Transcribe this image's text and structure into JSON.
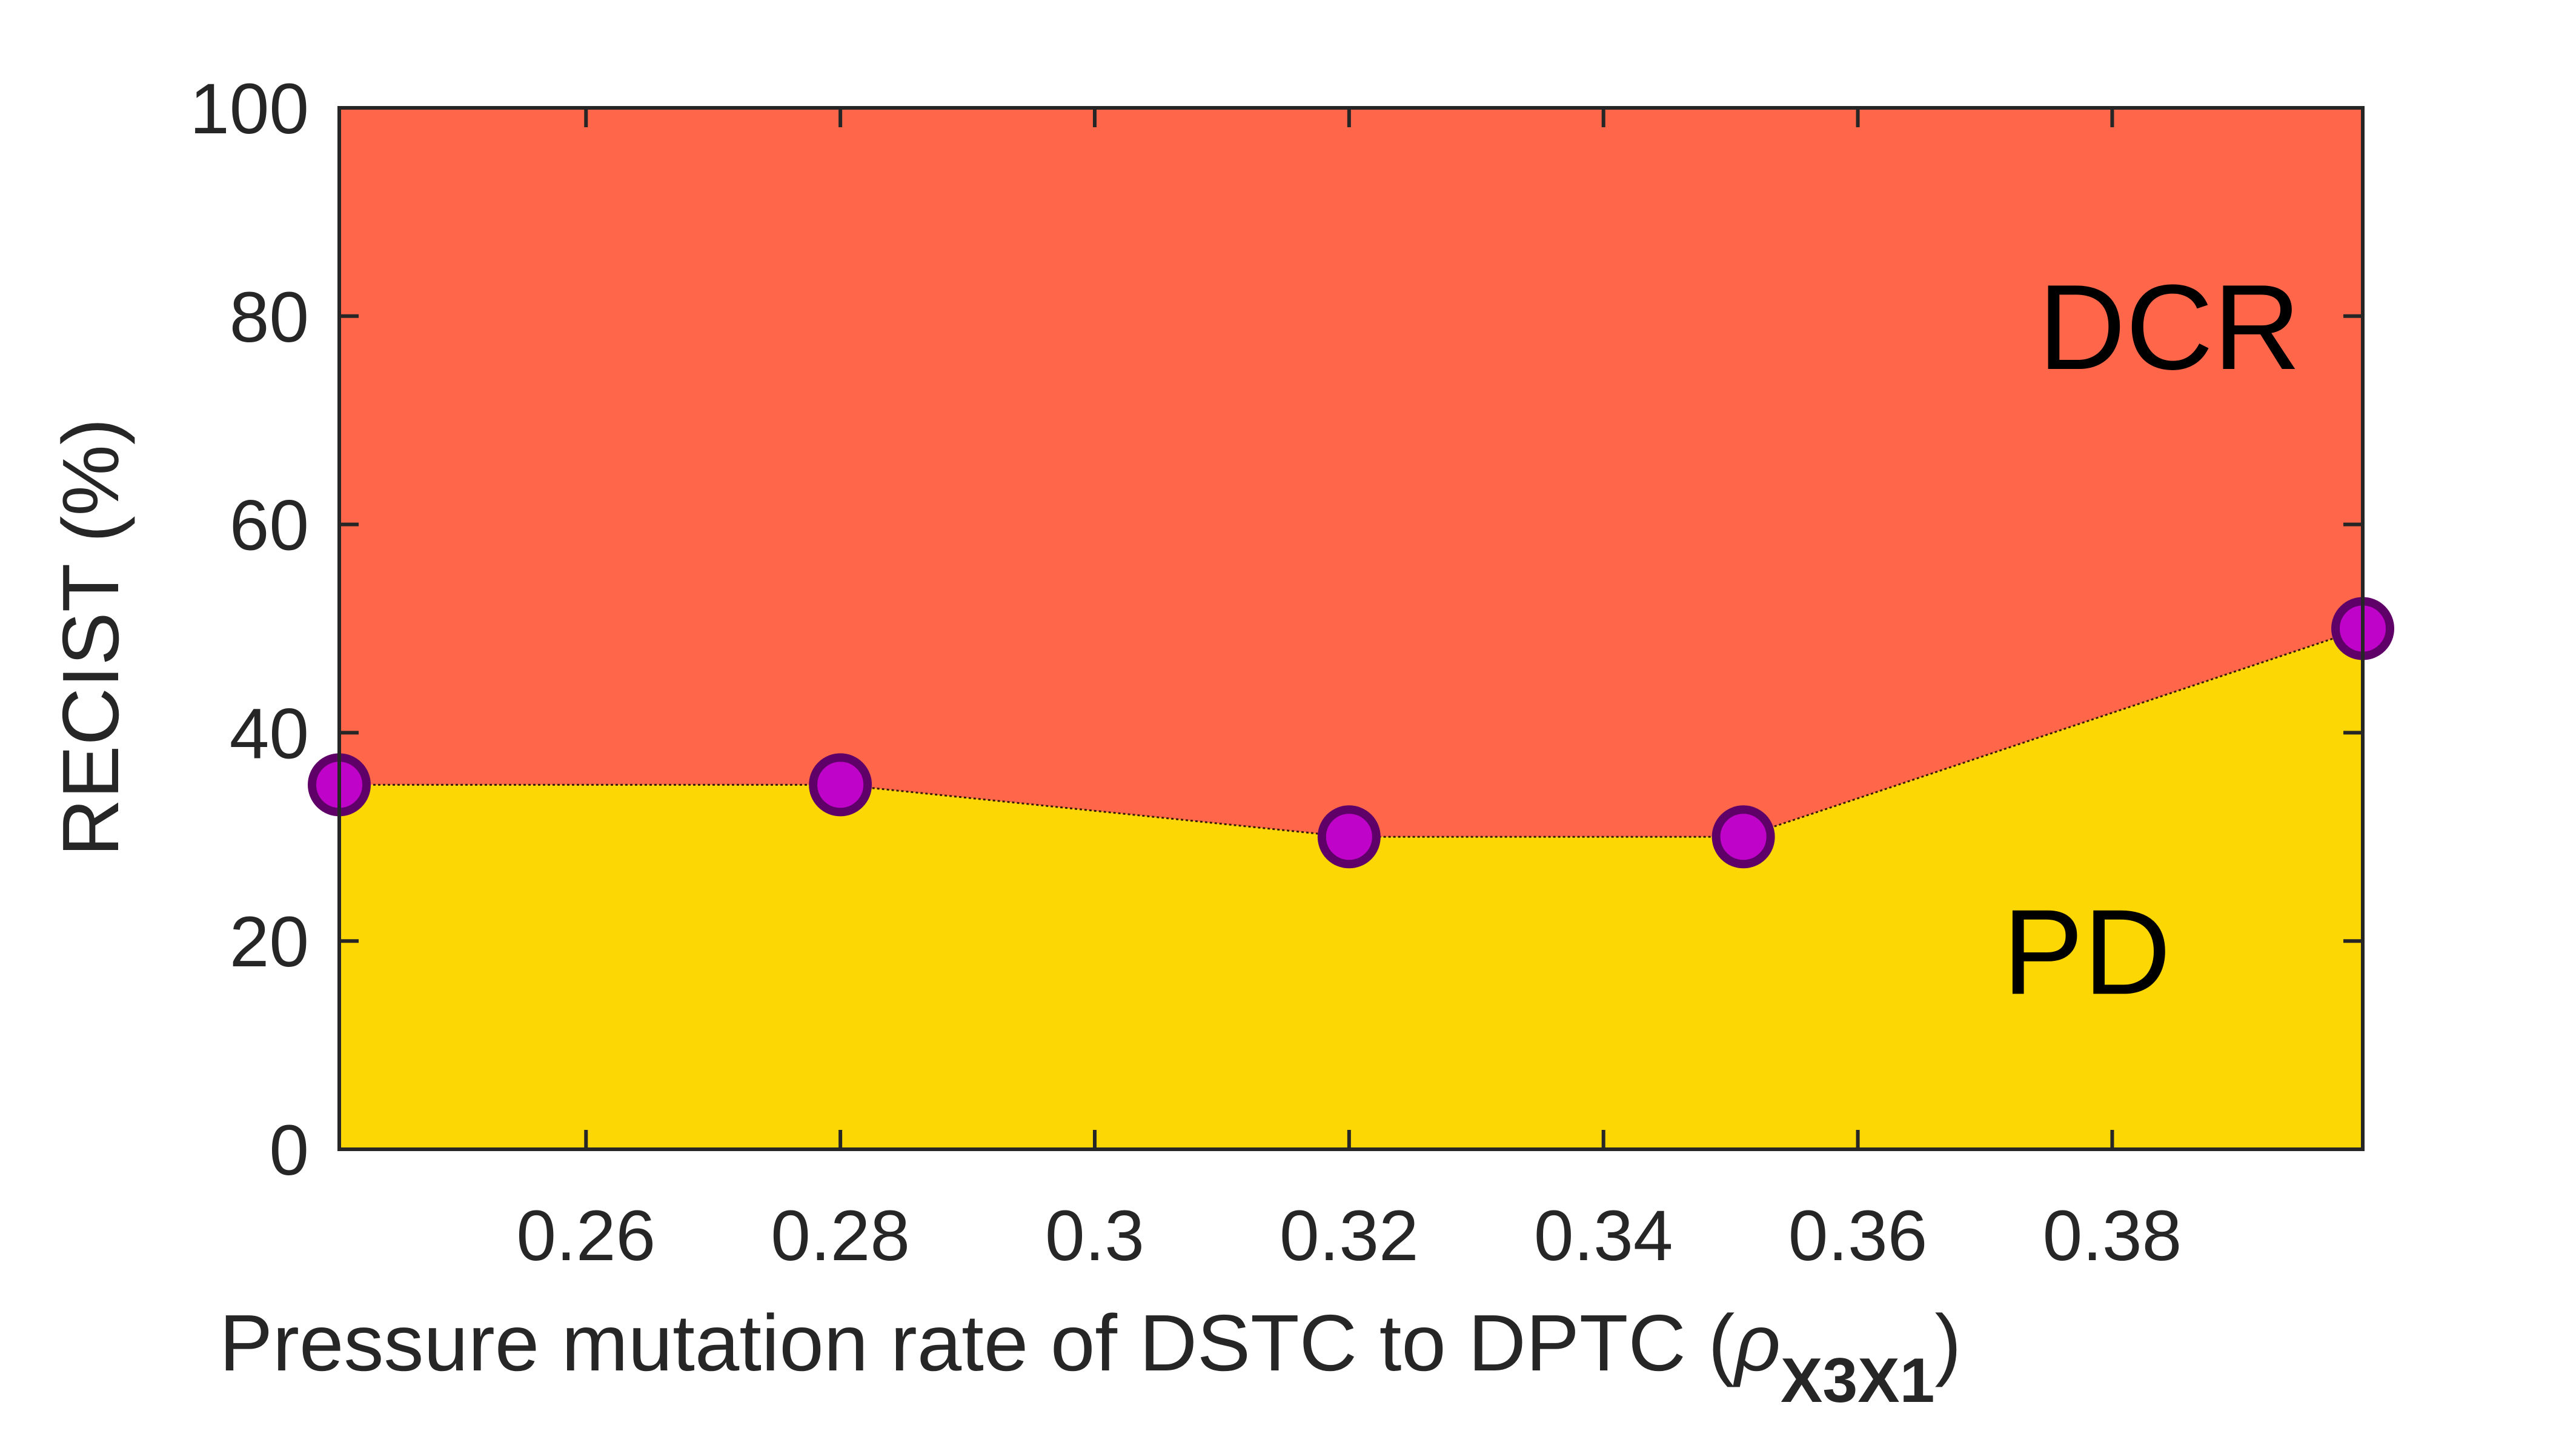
{
  "colors": {
    "dcr_fill": "#FF664A",
    "pd_fill": "#FCD703",
    "marker_fill": "#BF03C9",
    "marker_edge": "#5F0068",
    "axis": "#262626"
  },
  "chart_data": {
    "type": "area",
    "xlabel": {
      "main": "Pressure  mutation rate of DSTC to DPTC (",
      "symbol": "ρ",
      "subscript": "X3X1",
      "close": ")"
    },
    "ylabel": "RECIST (%)",
    "xlim": [
      0.2406,
      0.3997
    ],
    "ylim": [
      0,
      100
    ],
    "xticks": [
      0.26,
      0.28,
      0.3,
      0.32,
      0.34,
      0.36,
      0.38
    ],
    "xtick_labels": [
      "0.26",
      "0.28",
      "0.3",
      "0.32",
      "0.34",
      "0.36",
      "0.38"
    ],
    "yticks": [
      0,
      20,
      40,
      60,
      80,
      100
    ],
    "ytick_labels": [
      "0",
      "20",
      "40",
      "60",
      "80",
      "100"
    ],
    "x": [
      0.2406,
      0.28,
      0.32,
      0.351,
      0.3997
    ],
    "series": [
      {
        "name": "PD",
        "values": [
          35,
          35,
          30,
          30,
          50
        ]
      },
      {
        "name": "DCR",
        "values": [
          65,
          65,
          70,
          70,
          50
        ]
      }
    ],
    "annotations": [
      {
        "text": "DCR",
        "x": 0.3845,
        "y": 79
      },
      {
        "text": "PD",
        "x": 0.378,
        "y": 19
      }
    ],
    "grid": false,
    "stacked": true,
    "box": true
  }
}
